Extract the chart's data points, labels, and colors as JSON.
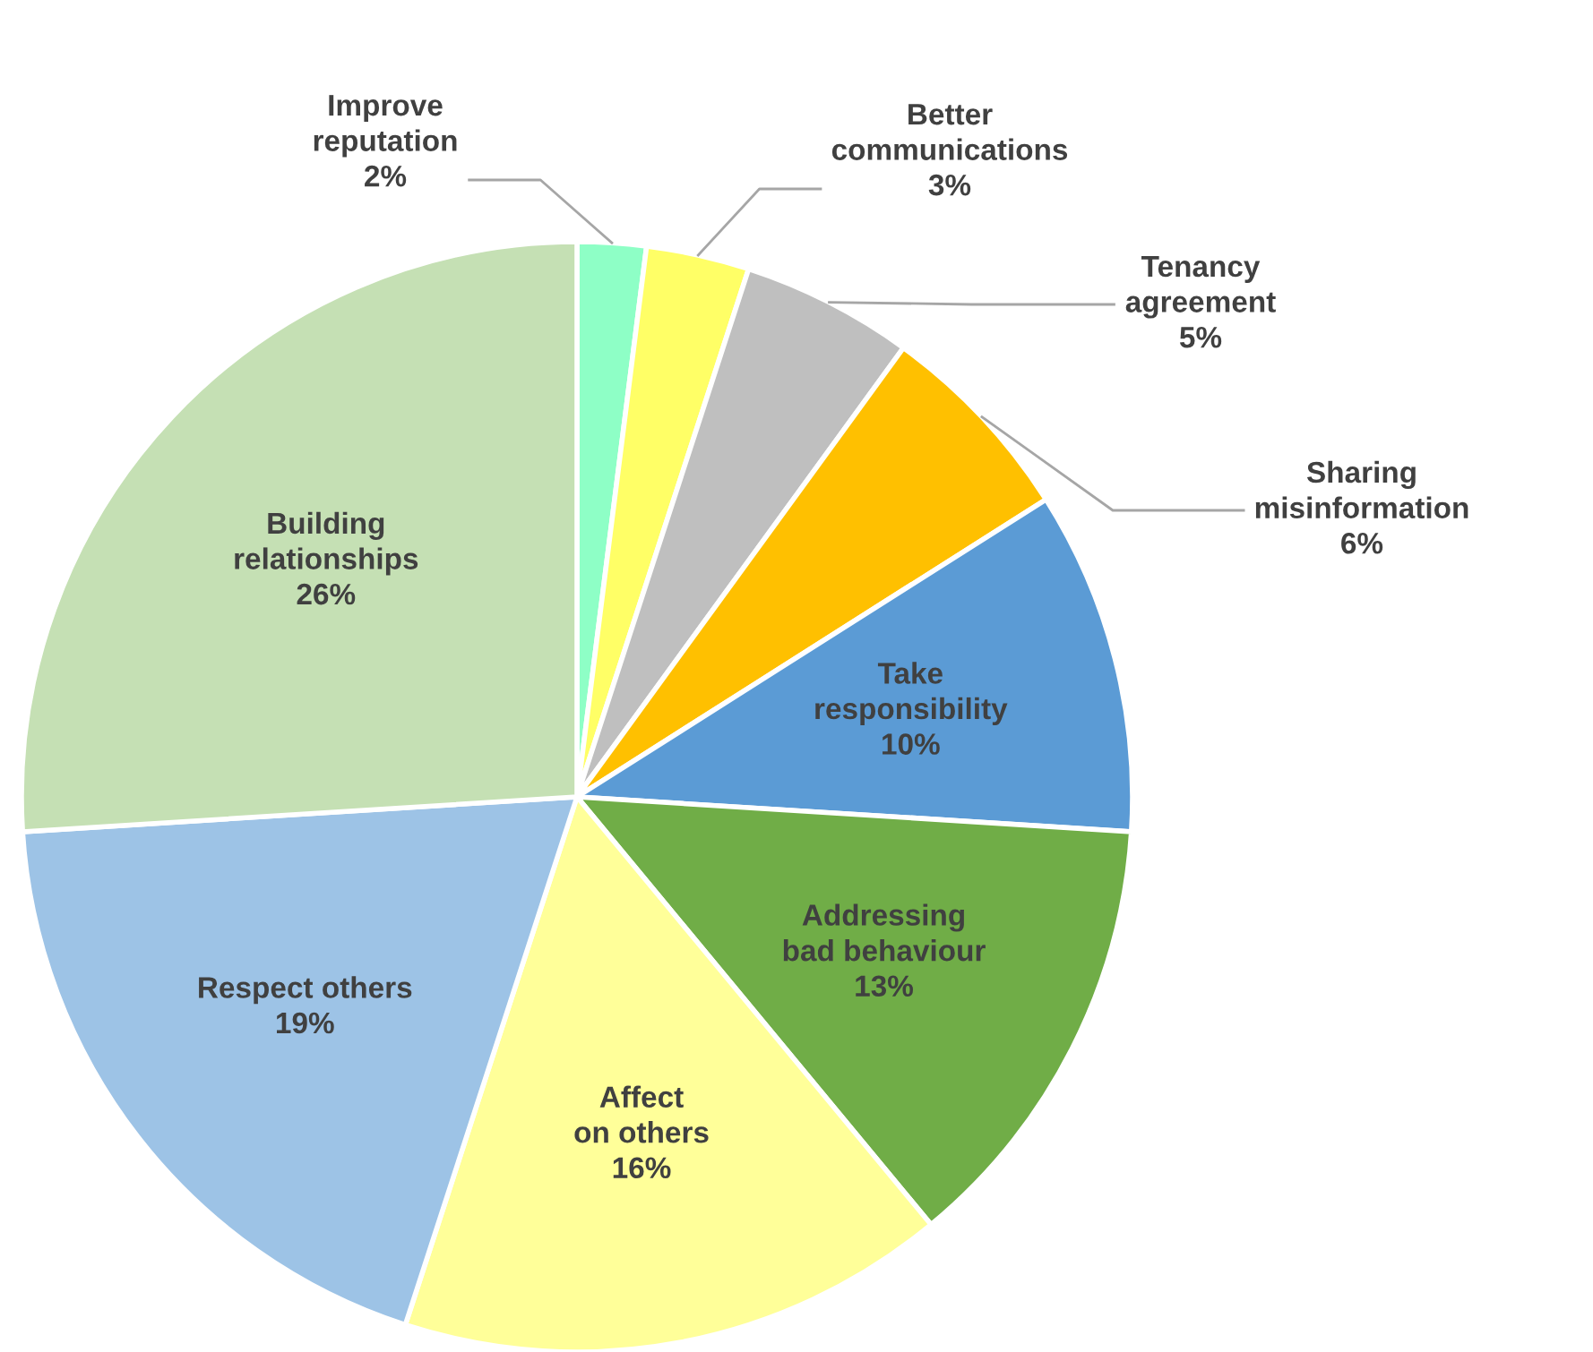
{
  "chart_data": {
    "type": "pie",
    "categories": [
      "Improve reputation",
      "Better communications",
      "Tenancy agreement",
      "Sharing misinformation",
      "Take responsibility",
      "Addressing bad behaviour",
      "Affect on others",
      "Respect others",
      "Building relationships"
    ],
    "values": [
      2,
      3,
      5,
      6,
      10,
      13,
      16,
      19,
      26
    ],
    "colors": [
      "#8effc6",
      "#ffff66",
      "#bfbfbf",
      "#ffc000",
      "#5b9bd5",
      "#70ad47",
      "#ffff99",
      "#9dc3e6",
      "#c5e0b4"
    ],
    "value_labels": [
      "2%",
      "3%",
      "5%",
      "6%",
      "10%",
      "13%",
      "16%",
      "19%",
      "26%"
    ],
    "legend": false
  }
}
